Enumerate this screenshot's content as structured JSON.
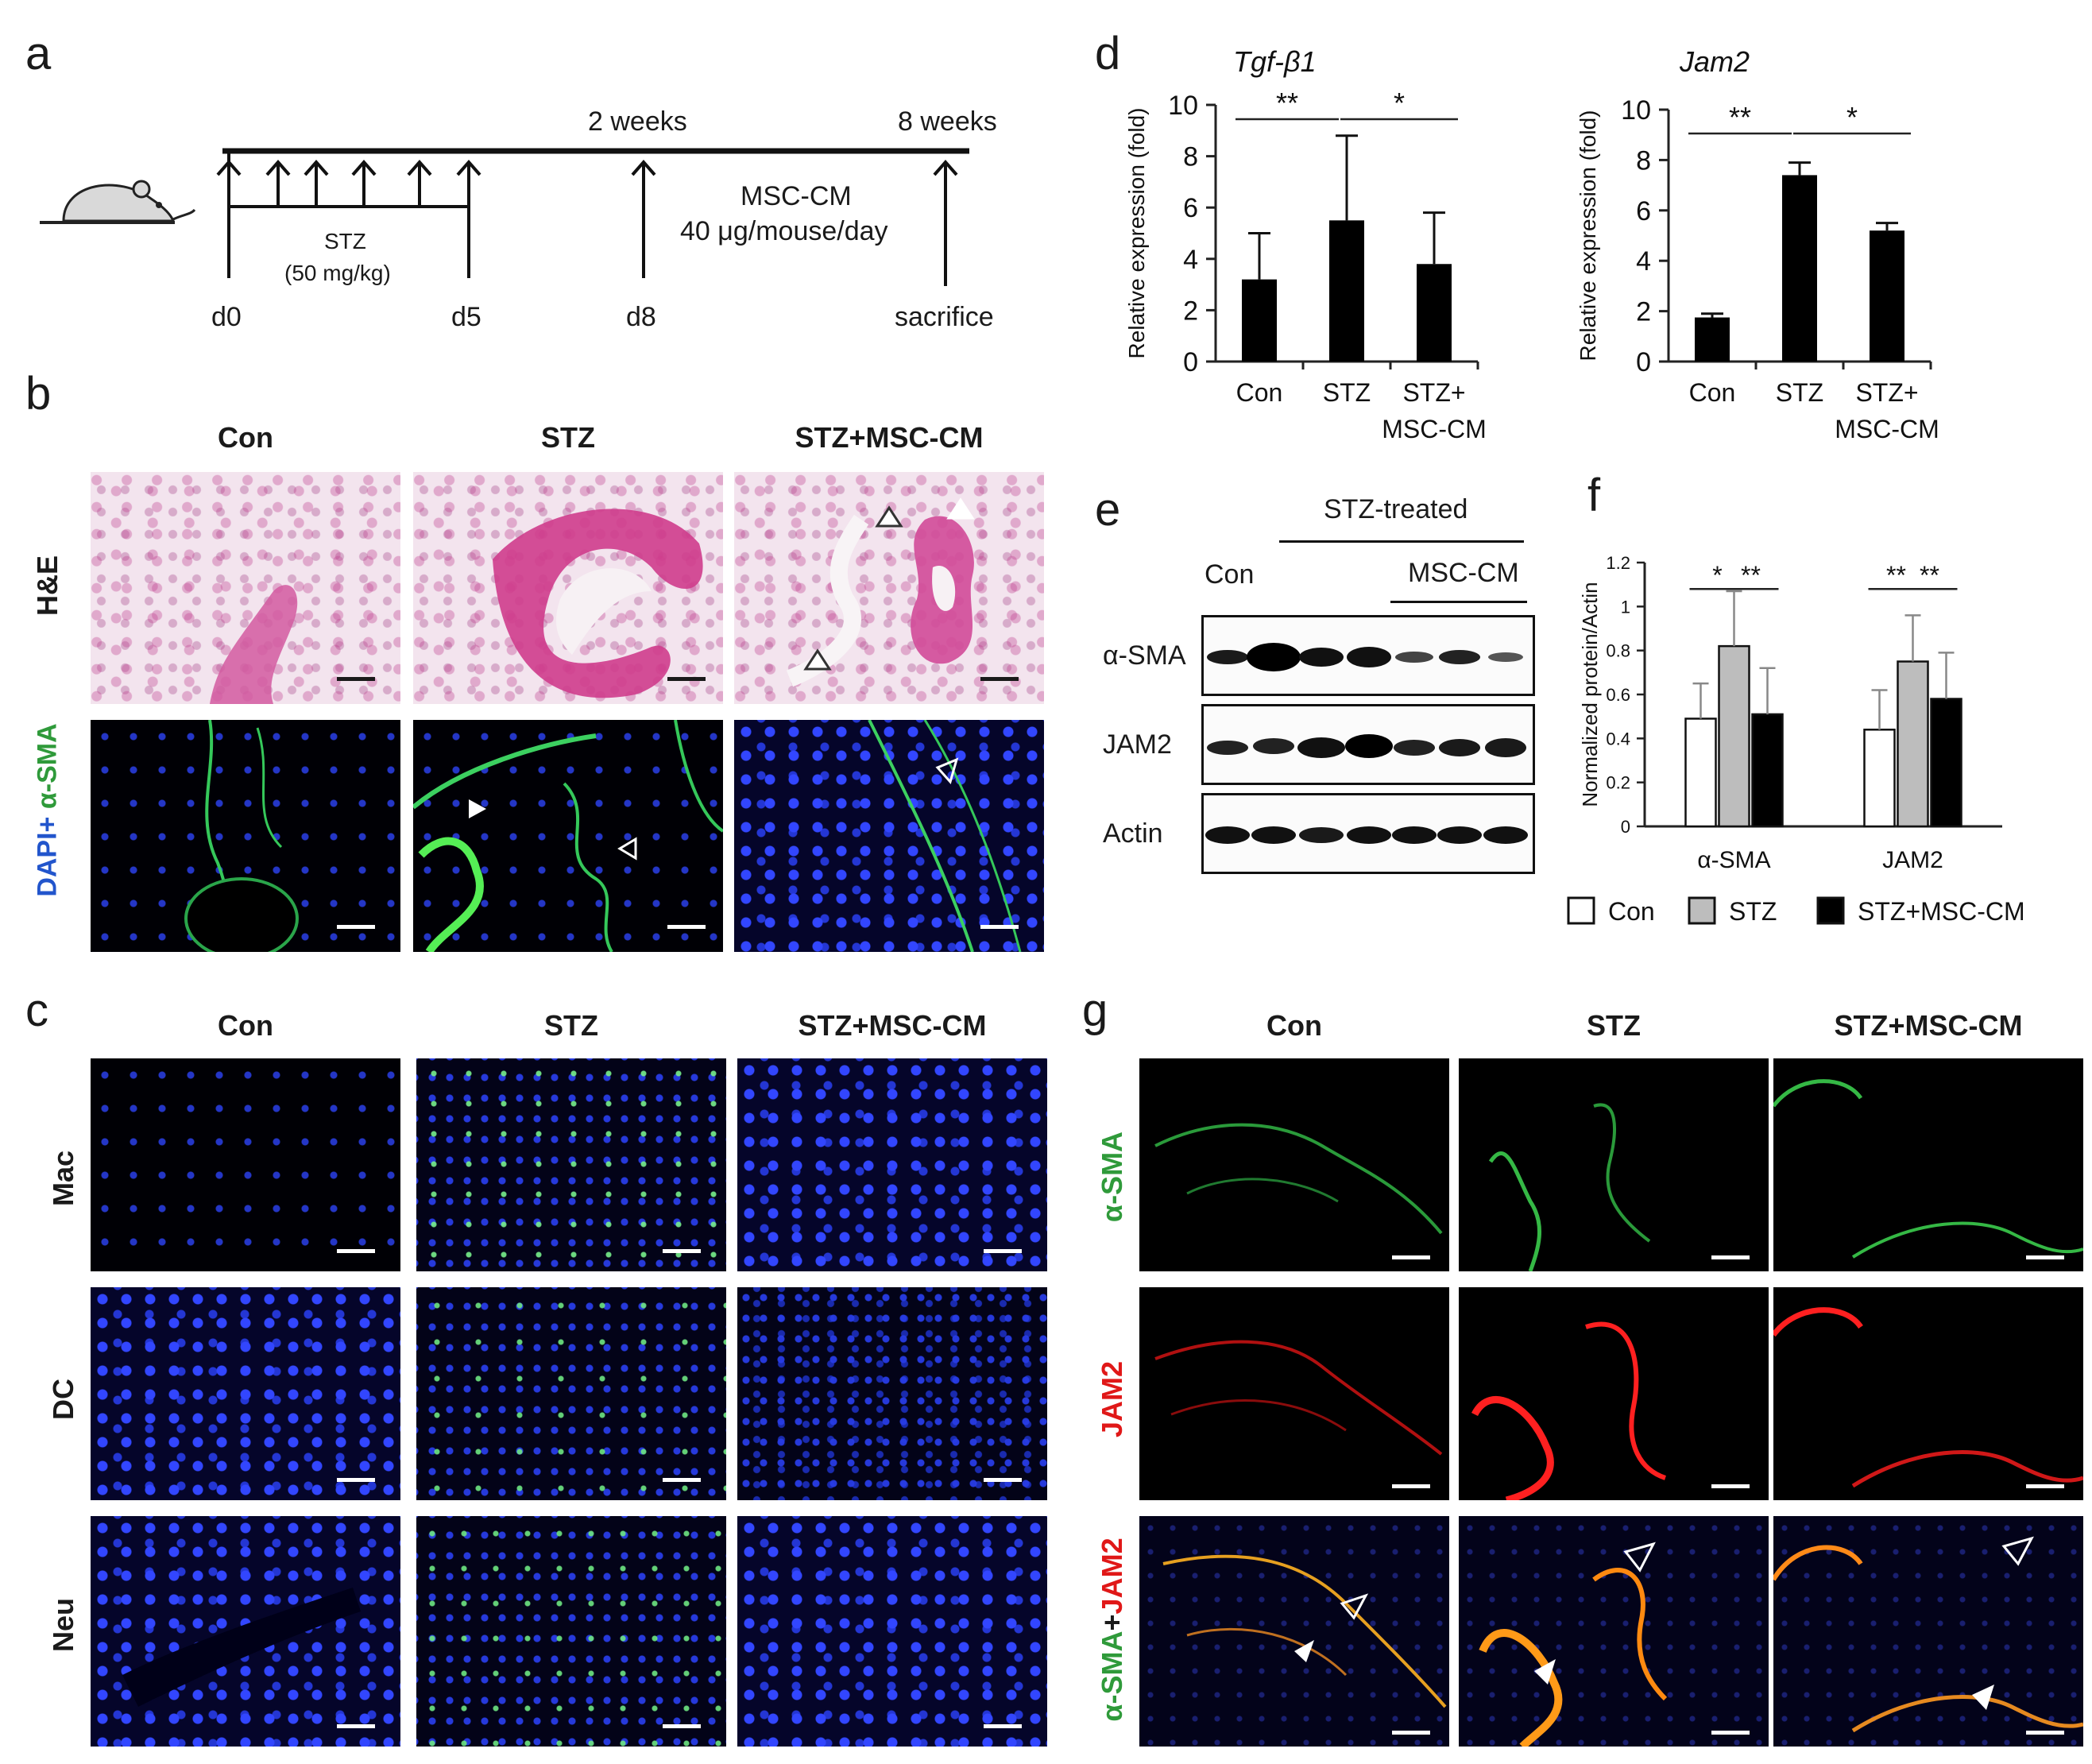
{
  "panel_letters": {
    "a": "a",
    "b": "b",
    "c": "c",
    "d": "d",
    "e": "e",
    "f": "f",
    "g": "g"
  },
  "panel_a": {
    "top_labels": [
      "2 weeks",
      "8 weeks"
    ],
    "day_labels": [
      "d0",
      "d5",
      "d8",
      "sacrifice"
    ],
    "stz_label": "STZ",
    "stz_dose": "(50 mg/kg)",
    "mscm_label": "MSC-CM",
    "mscm_dose": "40 μg/mouse/day"
  },
  "panel_b": {
    "columns": [
      "Con",
      "STZ",
      "STZ+MSC-CM"
    ],
    "row_he": "H&E",
    "row_dapi": "DAPI+",
    "row_sma": " α-SMA"
  },
  "panel_c": {
    "columns": [
      "Con",
      "STZ",
      "STZ+MSC-CM"
    ],
    "rows": [
      "Mac",
      "DC",
      "Neu"
    ]
  },
  "panel_g": {
    "columns": [
      "Con",
      "STZ",
      "STZ+MSC-CM"
    ],
    "row_sma": "α-SMA",
    "row_jam2": "JAM2",
    "row_merge_a": "α-SMA",
    "row_merge_plus": "+",
    "row_merge_b": "JAM2"
  },
  "panel_e": {
    "group_label": "STZ-treated",
    "con_label": "Con",
    "mscm_label": "MSC-CM",
    "blot_labels": [
      "α-SMA",
      "JAM2",
      "Actin"
    ]
  },
  "colors": {
    "bar_black": "#000000",
    "bar_gray": "#bdbdbd",
    "bar_white": "#ffffff",
    "green": "#2f9a3a",
    "red": "#e01818",
    "dapi_blue": "#2255cc"
  },
  "chart_data": [
    {
      "type": "bar",
      "title": "Tgf-β1",
      "ylabel": "Relative expression (fold)",
      "categories": [
        "Con",
        "STZ",
        "STZ+\nMSC-CM"
      ],
      "category_lines": [
        [
          "Con"
        ],
        [
          "STZ"
        ],
        [
          "STZ+",
          "MSC-CM"
        ]
      ],
      "values": [
        3.2,
        5.5,
        3.8
      ],
      "errors": [
        1.8,
        3.3,
        2.0
      ],
      "ylim": [
        0,
        10
      ],
      "yticks": [
        "0",
        "2",
        "4",
        "6",
        "8",
        "10"
      ],
      "significance": [
        {
          "from": 0,
          "to": 1,
          "label": "**"
        },
        {
          "from": 1,
          "to": 2,
          "label": "*"
        }
      ]
    },
    {
      "type": "bar",
      "title": "Jam2",
      "ylabel": "Relative expression (fold)",
      "categories": [
        "Con",
        "STZ",
        "STZ+\nMSC-CM"
      ],
      "category_lines": [
        [
          "Con"
        ],
        [
          "STZ"
        ],
        [
          "STZ+",
          "MSC-CM"
        ]
      ],
      "values": [
        1.75,
        7.4,
        5.2
      ],
      "errors": [
        0.15,
        0.5,
        0.3
      ],
      "ylim": [
        0,
        10
      ],
      "yticks": [
        "0",
        "2",
        "4",
        "6",
        "8",
        "10"
      ],
      "significance": [
        {
          "from": 0,
          "to": 1,
          "label": "**"
        },
        {
          "from": 1,
          "to": 2,
          "label": "*"
        }
      ]
    },
    {
      "type": "bar",
      "ylabel": "Normalized protein/Actin",
      "categories": [
        "α-SMA",
        "JAM2"
      ],
      "series": [
        {
          "name": "Con",
          "values": [
            0.49,
            0.44
          ],
          "errors": [
            0.16,
            0.18
          ]
        },
        {
          "name": "STZ",
          "values": [
            0.82,
            0.75
          ],
          "errors": [
            0.25,
            0.21
          ]
        },
        {
          "name": "STZ+MSC-CM",
          "values": [
            0.51,
            0.58
          ],
          "errors": [
            0.21,
            0.21
          ]
        }
      ],
      "ylim": [
        0,
        1.2
      ],
      "yticks": [
        "0",
        "0.2",
        "0.4",
        "0.6",
        "0.8",
        "1",
        "1.2"
      ],
      "significance": [
        {
          "group": 0,
          "from": 0,
          "to": 1,
          "label": "*"
        },
        {
          "group": 0,
          "from": 1,
          "to": 2,
          "label": "**"
        },
        {
          "group": 1,
          "from": 0,
          "to": 1,
          "label": "**"
        },
        {
          "group": 1,
          "from": 1,
          "to": 2,
          "label": "**"
        }
      ]
    }
  ]
}
